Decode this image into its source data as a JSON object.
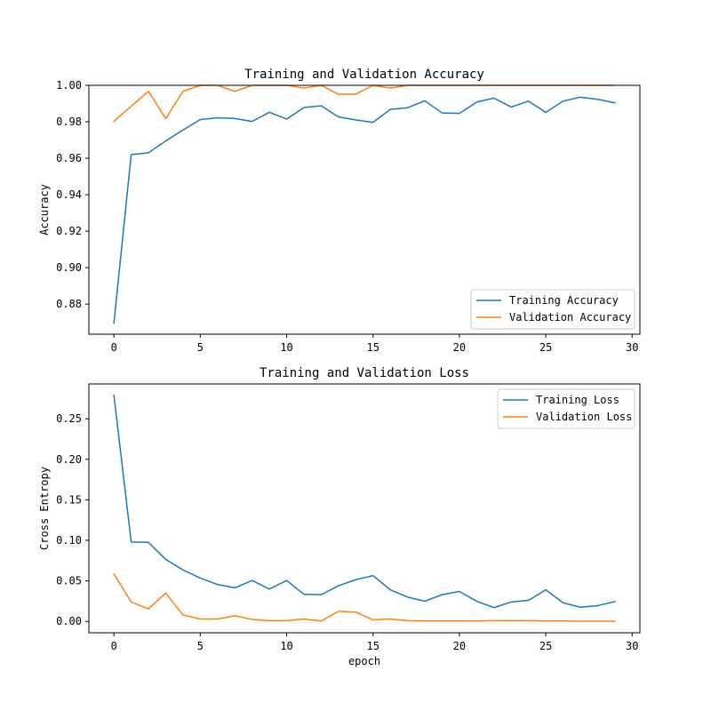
{
  "colors": {
    "training": "#1f77b4",
    "validation": "#ff7f0e"
  },
  "chart_data": [
    {
      "type": "line",
      "title": "Training and Validation Accuracy",
      "xlabel": "",
      "ylabel": "Accuracy",
      "xlim": [
        -1.45,
        30.45
      ],
      "ylim": [
        0.8635,
        1.0
      ],
      "xticks": [
        0,
        5,
        10,
        15,
        20,
        25,
        30
      ],
      "xtick_labels": [
        "0",
        "5",
        "10",
        "15",
        "20",
        "25",
        "30"
      ],
      "yticks": [
        0.88,
        0.9,
        0.92,
        0.94,
        0.96,
        0.98,
        1.0
      ],
      "ytick_labels": [
        "0.88",
        "0.90",
        "0.92",
        "0.94",
        "0.96",
        "0.98",
        "1.00"
      ],
      "legend_position": "lower-right",
      "x": [
        0,
        1,
        2,
        3,
        4,
        5,
        6,
        7,
        8,
        9,
        10,
        11,
        12,
        13,
        14,
        15,
        16,
        17,
        18,
        19,
        20,
        21,
        22,
        23,
        24,
        25,
        26,
        27,
        28,
        29
      ],
      "series": [
        {
          "name": "Training Accuracy",
          "color": "#1f77b4",
          "values": [
            0.8695,
            0.962,
            0.963,
            0.9695,
            0.9755,
            0.9812,
            0.9822,
            0.9818,
            0.9802,
            0.9852,
            0.9815,
            0.9878,
            0.9888,
            0.9827,
            0.981,
            0.9797,
            0.9868,
            0.9877,
            0.9915,
            0.9848,
            0.9846,
            0.9908,
            0.993,
            0.9881,
            0.9913,
            0.9852,
            0.9913,
            0.9935,
            0.9923,
            0.9904
          ]
        },
        {
          "name": "Validation Accuracy",
          "color": "#ff7f0e",
          "values": [
            0.9803,
            0.9885,
            0.9967,
            0.9817,
            0.9967,
            1.0,
            1.0,
            0.9967,
            1.0,
            1.0,
            1.0,
            0.9985,
            1.0,
            0.9951,
            0.9951,
            1.0,
            0.9985,
            1.0,
            1.0,
            1.0,
            1.0,
            1.0,
            1.0,
            1.0,
            1.0,
            1.0,
            1.0,
            1.0,
            1.0,
            1.0
          ]
        }
      ]
    },
    {
      "type": "line",
      "title": "Training and Validation Loss",
      "xlabel": "epoch",
      "ylabel": "Cross Entropy",
      "xlim": [
        -1.45,
        30.45
      ],
      "ylim": [
        -0.014,
        0.293
      ],
      "xticks": [
        0,
        5,
        10,
        15,
        20,
        25,
        30
      ],
      "xtick_labels": [
        "0",
        "5",
        "10",
        "15",
        "20",
        "25",
        "30"
      ],
      "yticks": [
        0.0,
        0.05,
        0.1,
        0.15,
        0.2,
        0.25
      ],
      "ytick_labels": [
        "0.00",
        "0.05",
        "0.10",
        "0.15",
        "0.20",
        "0.25"
      ],
      "legend_position": "upper-right",
      "x": [
        0,
        1,
        2,
        3,
        4,
        5,
        6,
        7,
        8,
        9,
        10,
        11,
        12,
        13,
        14,
        15,
        16,
        17,
        18,
        19,
        20,
        21,
        22,
        23,
        24,
        25,
        26,
        27,
        28,
        29
      ],
      "series": [
        {
          "name": "Training Loss",
          "color": "#1f77b4",
          "values": [
            0.279,
            0.098,
            0.0975,
            0.0765,
            0.0635,
            0.0535,
            0.0455,
            0.0415,
            0.0505,
            0.04,
            0.0505,
            0.0335,
            0.033,
            0.044,
            0.0515,
            0.0565,
            0.039,
            0.03,
            0.025,
            0.033,
            0.037,
            0.025,
            0.017,
            0.024,
            0.026,
            0.039,
            0.023,
            0.0175,
            0.0195,
            0.0245
          ]
        },
        {
          "name": "Validation Loss",
          "color": "#ff7f0e",
          "values": [
            0.0585,
            0.024,
            0.0155,
            0.035,
            0.008,
            0.003,
            0.003,
            0.007,
            0.0025,
            0.001,
            0.001,
            0.003,
            0.0005,
            0.0125,
            0.0115,
            0.002,
            0.003,
            0.001,
            0.0005,
            0.0005,
            0.0005,
            0.0005,
            0.001,
            0.001,
            0.001,
            0.0005,
            0.0005,
            0.0003,
            0.0003,
            0.0003
          ]
        }
      ]
    }
  ]
}
